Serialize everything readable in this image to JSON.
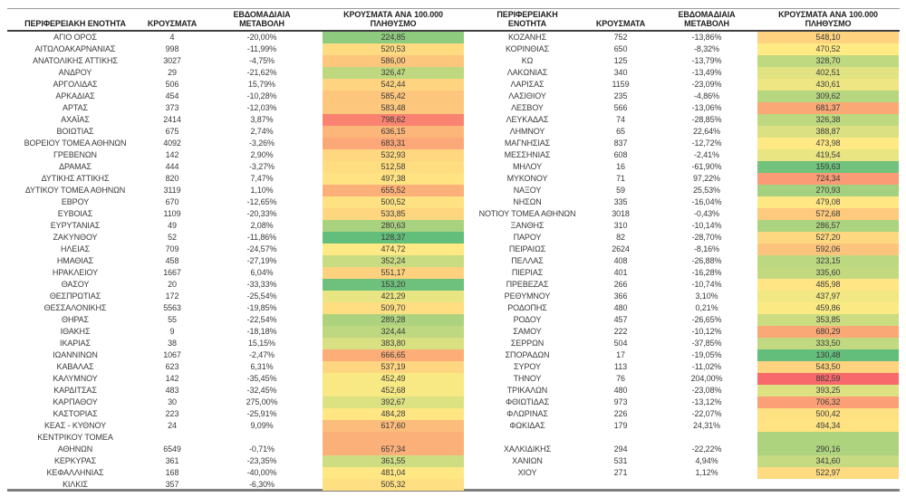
{
  "chart_data": {
    "type": "table",
    "color_scale": {
      "min_value": 128.37,
      "mid_value": 468,
      "max_value": 882.59,
      "min_color": "#63BE7B",
      "mid_color": "#FFEB84",
      "max_color": "#F8696B"
    },
    "left_table": {
      "header": {
        "region": "ΠΕΡΙΦΕΡΕΙΑΚΗ ΕΝΟΤΗΤΑ",
        "cases": "ΚΡΟΥΣΜΑΤΑ",
        "change": "ΕΒΔΟΜΑΔΙΑΙΑ\nΜΕΤΑΒΟΛΗ",
        "per100k": "ΚΡΟΥΣΜΑΤΑ ΑΝΑ 100.000\nΠΛΗΘΥΣΜΟ"
      },
      "rows": [
        [
          "ΑΓΙΟ ΟΡΟΣ",
          "4",
          "-20,00%",
          "224,85"
        ],
        [
          "ΑΙΤΩΛΟΑΚΑΡΝΑΝΙΑΣ",
          "998",
          "-11,99%",
          "520,53"
        ],
        [
          "ΑΝΑΤΟΛΙΚΗΣ ΑΤΤΙΚΗΣ",
          "3027",
          "-4,75%",
          "586,00"
        ],
        [
          "ΑΝΔΡΟΥ",
          "29",
          "-21,62%",
          "326,47"
        ],
        [
          "ΑΡΓΟΛΙΔΑΣ",
          "506",
          "15,79%",
          "542,44"
        ],
        [
          "ΑΡΚΑΔΙΑΣ",
          "454",
          "-10,28%",
          "585,42"
        ],
        [
          "ΑΡΤΑΣ",
          "373",
          "-12,03%",
          "583,48"
        ],
        [
          "ΑΧΑΪΑΣ",
          "2414",
          "3,87%",
          "798,62"
        ],
        [
          "ΒΟΙΩΤΙΑΣ",
          "675",
          "2,74%",
          "636,15"
        ],
        [
          "ΒΟΡΕΙΟΥ ΤΟΜΕΑ ΑΘΗΝΩΝ",
          "4092",
          "-3,26%",
          "683,31"
        ],
        [
          "ΓΡΕΒΕΝΩΝ",
          "142",
          "2,90%",
          "532,93"
        ],
        [
          "ΔΡΑΜΑΣ",
          "444",
          "-3,27%",
          "512,58"
        ],
        [
          "ΔΥΤΙΚΗΣ ΑΤΤΙΚΗΣ",
          "820",
          "7,47%",
          "497,38"
        ],
        [
          "ΔΥΤΙΚΟΥ ΤΟΜΕΑ ΑΘΗΝΩΝ",
          "3119",
          "1,10%",
          "655,52"
        ],
        [
          "ΕΒΡΟΥ",
          "670",
          "-12,65%",
          "500,52"
        ],
        [
          "ΕΥΒΟΙΑΣ",
          "1109",
          "-20,33%",
          "533,85"
        ],
        [
          "ΕΥΡΥΤΑΝΙΑΣ",
          "49",
          "2,08%",
          "280,63"
        ],
        [
          "ΖΑΚΥΝΘΟΥ",
          "52",
          "-11,86%",
          "128,37"
        ],
        [
          "ΗΛΕΙΑΣ",
          "709",
          "-24,57%",
          "474,72"
        ],
        [
          "ΗΜΑΘΙΑΣ",
          "458",
          "-27,19%",
          "352,24"
        ],
        [
          "ΗΡΑΚΛΕΙΟΥ",
          "1667",
          "6,04%",
          "551,17"
        ],
        [
          "ΘΑΣΟΥ",
          "20",
          "-33,33%",
          "153,20"
        ],
        [
          "ΘΕΣΠΡΩΤΙΑΣ",
          "172",
          "-25,54%",
          "421,29"
        ],
        [
          "ΘΕΣΣΑΛΟΝΙΚΗΣ",
          "5563",
          "-19,85%",
          "509,70"
        ],
        [
          "ΘΗΡΑΣ",
          "55",
          "-22,54%",
          "289,28"
        ],
        [
          "ΙΘΑΚΗΣ",
          "9",
          "-18,18%",
          "324,44"
        ],
        [
          "ΙΚΑΡΙΑΣ",
          "38",
          "15,15%",
          "383,80"
        ],
        [
          "ΙΩΑΝΝΙΝΩΝ",
          "1067",
          "-2,47%",
          "666,65"
        ],
        [
          "ΚΑΒΑΛΑΣ",
          "623",
          "6,31%",
          "537,19"
        ],
        [
          "ΚΑΛΥΜΝΟΥ",
          "142",
          "-35,45%",
          "452,49"
        ],
        [
          "ΚΑΡΔΙΤΣΑΣ",
          "483",
          "-32,45%",
          "452,68"
        ],
        [
          "ΚΑΡΠΑΘΟΥ",
          "30",
          "275,00%",
          "392,67"
        ],
        [
          "ΚΑΣΤΟΡΙΑΣ",
          "223",
          "-25,91%",
          "484,28"
        ],
        [
          "ΚΕΑΣ - ΚΥΘΝΟΥ",
          "24",
          "9,09%",
          "617,60"
        ],
        [
          "ΚΕΝΤΡΙΚΟΥ ΤΟΜΕΑ\nΑΘΗΝΩΝ",
          "6549",
          "-0,71%",
          "657,34",
          "tall"
        ],
        [
          "ΚΕΡΚΥΡΑΣ",
          "361",
          "-23,35%",
          "361,55"
        ],
        [
          "ΚΕΦΑΛΛΗΝΙΑΣ",
          "168",
          "-40,00%",
          "481,04"
        ],
        [
          "ΚΙΛΚΙΣ",
          "357",
          "-6,30%",
          "505,32"
        ]
      ]
    },
    "right_table": {
      "header": {
        "region": "ΠΕΡΙΦΕΡΕΙΑΚΗ\nΕΝΟΤΗΤΑ",
        "cases": "ΚΡΟΥΣΜΑΤΑ",
        "change": "ΕΒΔΟΜΑΔΙΑΙΑ\nΜΕΤΑΒΟΛΗ",
        "per100k": "ΚΡΟΥΣΜΑΤΑ ΑΝΑ 100.000\nΠΛΗΘΥΣΜΟ"
      },
      "rows": [
        [
          "ΚΟΖΑΝΗΣ",
          "752",
          "-13,86%",
          "548,10"
        ],
        [
          "ΚΟΡΙΝΘΙΑΣ",
          "650",
          "-8,32%",
          "470,52"
        ],
        [
          "ΚΩ",
          "125",
          "-13,79%",
          "328,70"
        ],
        [
          "ΛΑΚΩΝΙΑΣ",
          "340",
          "-13,49%",
          "402,51"
        ],
        [
          "ΛΑΡΙΣΑΣ",
          "1159",
          "-23,09%",
          "430,61"
        ],
        [
          "ΛΑΣΙΘΙΟΥ",
          "235",
          "-4,86%",
          "309,62"
        ],
        [
          "ΛΕΣΒΟΥ",
          "566",
          "-13,06%",
          "681,37"
        ],
        [
          "ΛΕΥΚΑΔΑΣ",
          "74",
          "-28,85%",
          "326,38"
        ],
        [
          "ΛΗΜΝΟΥ",
          "65",
          "22,64%",
          "388,87"
        ],
        [
          "ΜΑΓΝΗΣΙΑΣ",
          "837",
          "-12,72%",
          "473,98"
        ],
        [
          "ΜΕΣΣΗΝΙΑΣ",
          "608",
          "-2,41%",
          "419,54"
        ],
        [
          "ΜΗΛΟΥ",
          "16",
          "-61,90%",
          "159,63"
        ],
        [
          "ΜΥΚΟΝΟΥ",
          "71",
          "97,22%",
          "724,34"
        ],
        [
          "ΝΑΞΟΥ",
          "59",
          "25,53%",
          "270,93"
        ],
        [
          "ΝΗΣΩΝ",
          "335",
          "-16,04%",
          "479,08"
        ],
        [
          "ΝΟΤΙΟΥ ΤΟΜΕΑ ΑΘΗΝΩΝ",
          "3018",
          "-0,43%",
          "572,68"
        ],
        [
          "ΞΑΝΘΗΣ",
          "310",
          "-10,14%",
          "286,57"
        ],
        [
          "ΠΑΡΟΥ",
          "82",
          "-28,70%",
          "527,20"
        ],
        [
          "ΠΕΙΡΑΙΩΣ",
          "2624",
          "-8,16%",
          "592,06"
        ],
        [
          "ΠΕΛΛΑΣ",
          "408",
          "-26,88%",
          "323,15"
        ],
        [
          "ΠΙΕΡΙΑΣ",
          "401",
          "-16,28%",
          "335,60"
        ],
        [
          "ΠΡΕΒΕΖΑΣ",
          "266",
          "-10,74%",
          "485,98"
        ],
        [
          "ΡΕΘΥΜΝΟΥ",
          "366",
          "3,10%",
          "437,97"
        ],
        [
          "ΡΟΔΟΠΗΣ",
          "480",
          "0,21%",
          "459,86"
        ],
        [
          "ΡΟΔΟΥ",
          "457",
          "-26,65%",
          "353,85"
        ],
        [
          "ΣΑΜΟΥ",
          "222",
          "-10,12%",
          "680,29"
        ],
        [
          "ΣΕΡΡΩΝ",
          "504",
          "-37,85%",
          "333,50"
        ],
        [
          "ΣΠΟΡΑΔΩΝ",
          "17",
          "-19,05%",
          "130,48"
        ],
        [
          "ΣΥΡΟΥ",
          "113",
          "-11,02%",
          "543,50"
        ],
        [
          "ΤΗΝΟΥ",
          "76",
          "204,00%",
          "882,59"
        ],
        [
          "ΤΡΙΚΑΛΩΝ",
          "480",
          "-23,08%",
          "393,25"
        ],
        [
          "ΦΘΙΩΤΙΔΑΣ",
          "973",
          "-13,12%",
          "706,32"
        ],
        [
          "ΦΛΩΡΙΝΑΣ",
          "226",
          "-22,07%",
          "500,42"
        ],
        [
          "ΦΩΚΙΔΑΣ",
          "179",
          "24,31%",
          "494,34"
        ],
        [
          "ΧΑΛΚΙΔΙΚΗΣ",
          "294",
          "-22,22%",
          "290,16",
          "tall"
        ],
        [
          "ΧΑΝΙΩΝ",
          "531",
          "4,94%",
          "341,60"
        ],
        [
          "ΧΙΟΥ",
          "271",
          "1,12%",
          "522,97"
        ]
      ]
    }
  }
}
